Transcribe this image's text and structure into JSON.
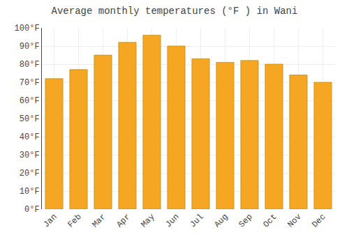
{
  "chart_data": {
    "type": "bar",
    "title": "Average monthly temperatures (°F ) in Wani",
    "categories": [
      "Jan",
      "Feb",
      "Mar",
      "Apr",
      "May",
      "Jun",
      "Jul",
      "Aug",
      "Sep",
      "Oct",
      "Nov",
      "Dec"
    ],
    "values": [
      72,
      77,
      85,
      92,
      96,
      90,
      83,
      81,
      82,
      80,
      74,
      70
    ],
    "color": "#F5A623",
    "ylim": [
      0,
      100
    ],
    "yticks": [
      {
        "value": 0,
        "label": "0°F"
      },
      {
        "value": 10,
        "label": "10°F"
      },
      {
        "value": 20,
        "label": "20°F"
      },
      {
        "value": 30,
        "label": "30°F"
      },
      {
        "value": 40,
        "label": "40°F"
      },
      {
        "value": 50,
        "label": "50°F"
      },
      {
        "value": 60,
        "label": "60°F"
      },
      {
        "value": 70,
        "label": "70°F"
      },
      {
        "value": 80,
        "label": "80°F"
      },
      {
        "value": 90,
        "label": "90°F"
      },
      {
        "value": 100,
        "label": "100°F"
      }
    ],
    "grid": true
  }
}
